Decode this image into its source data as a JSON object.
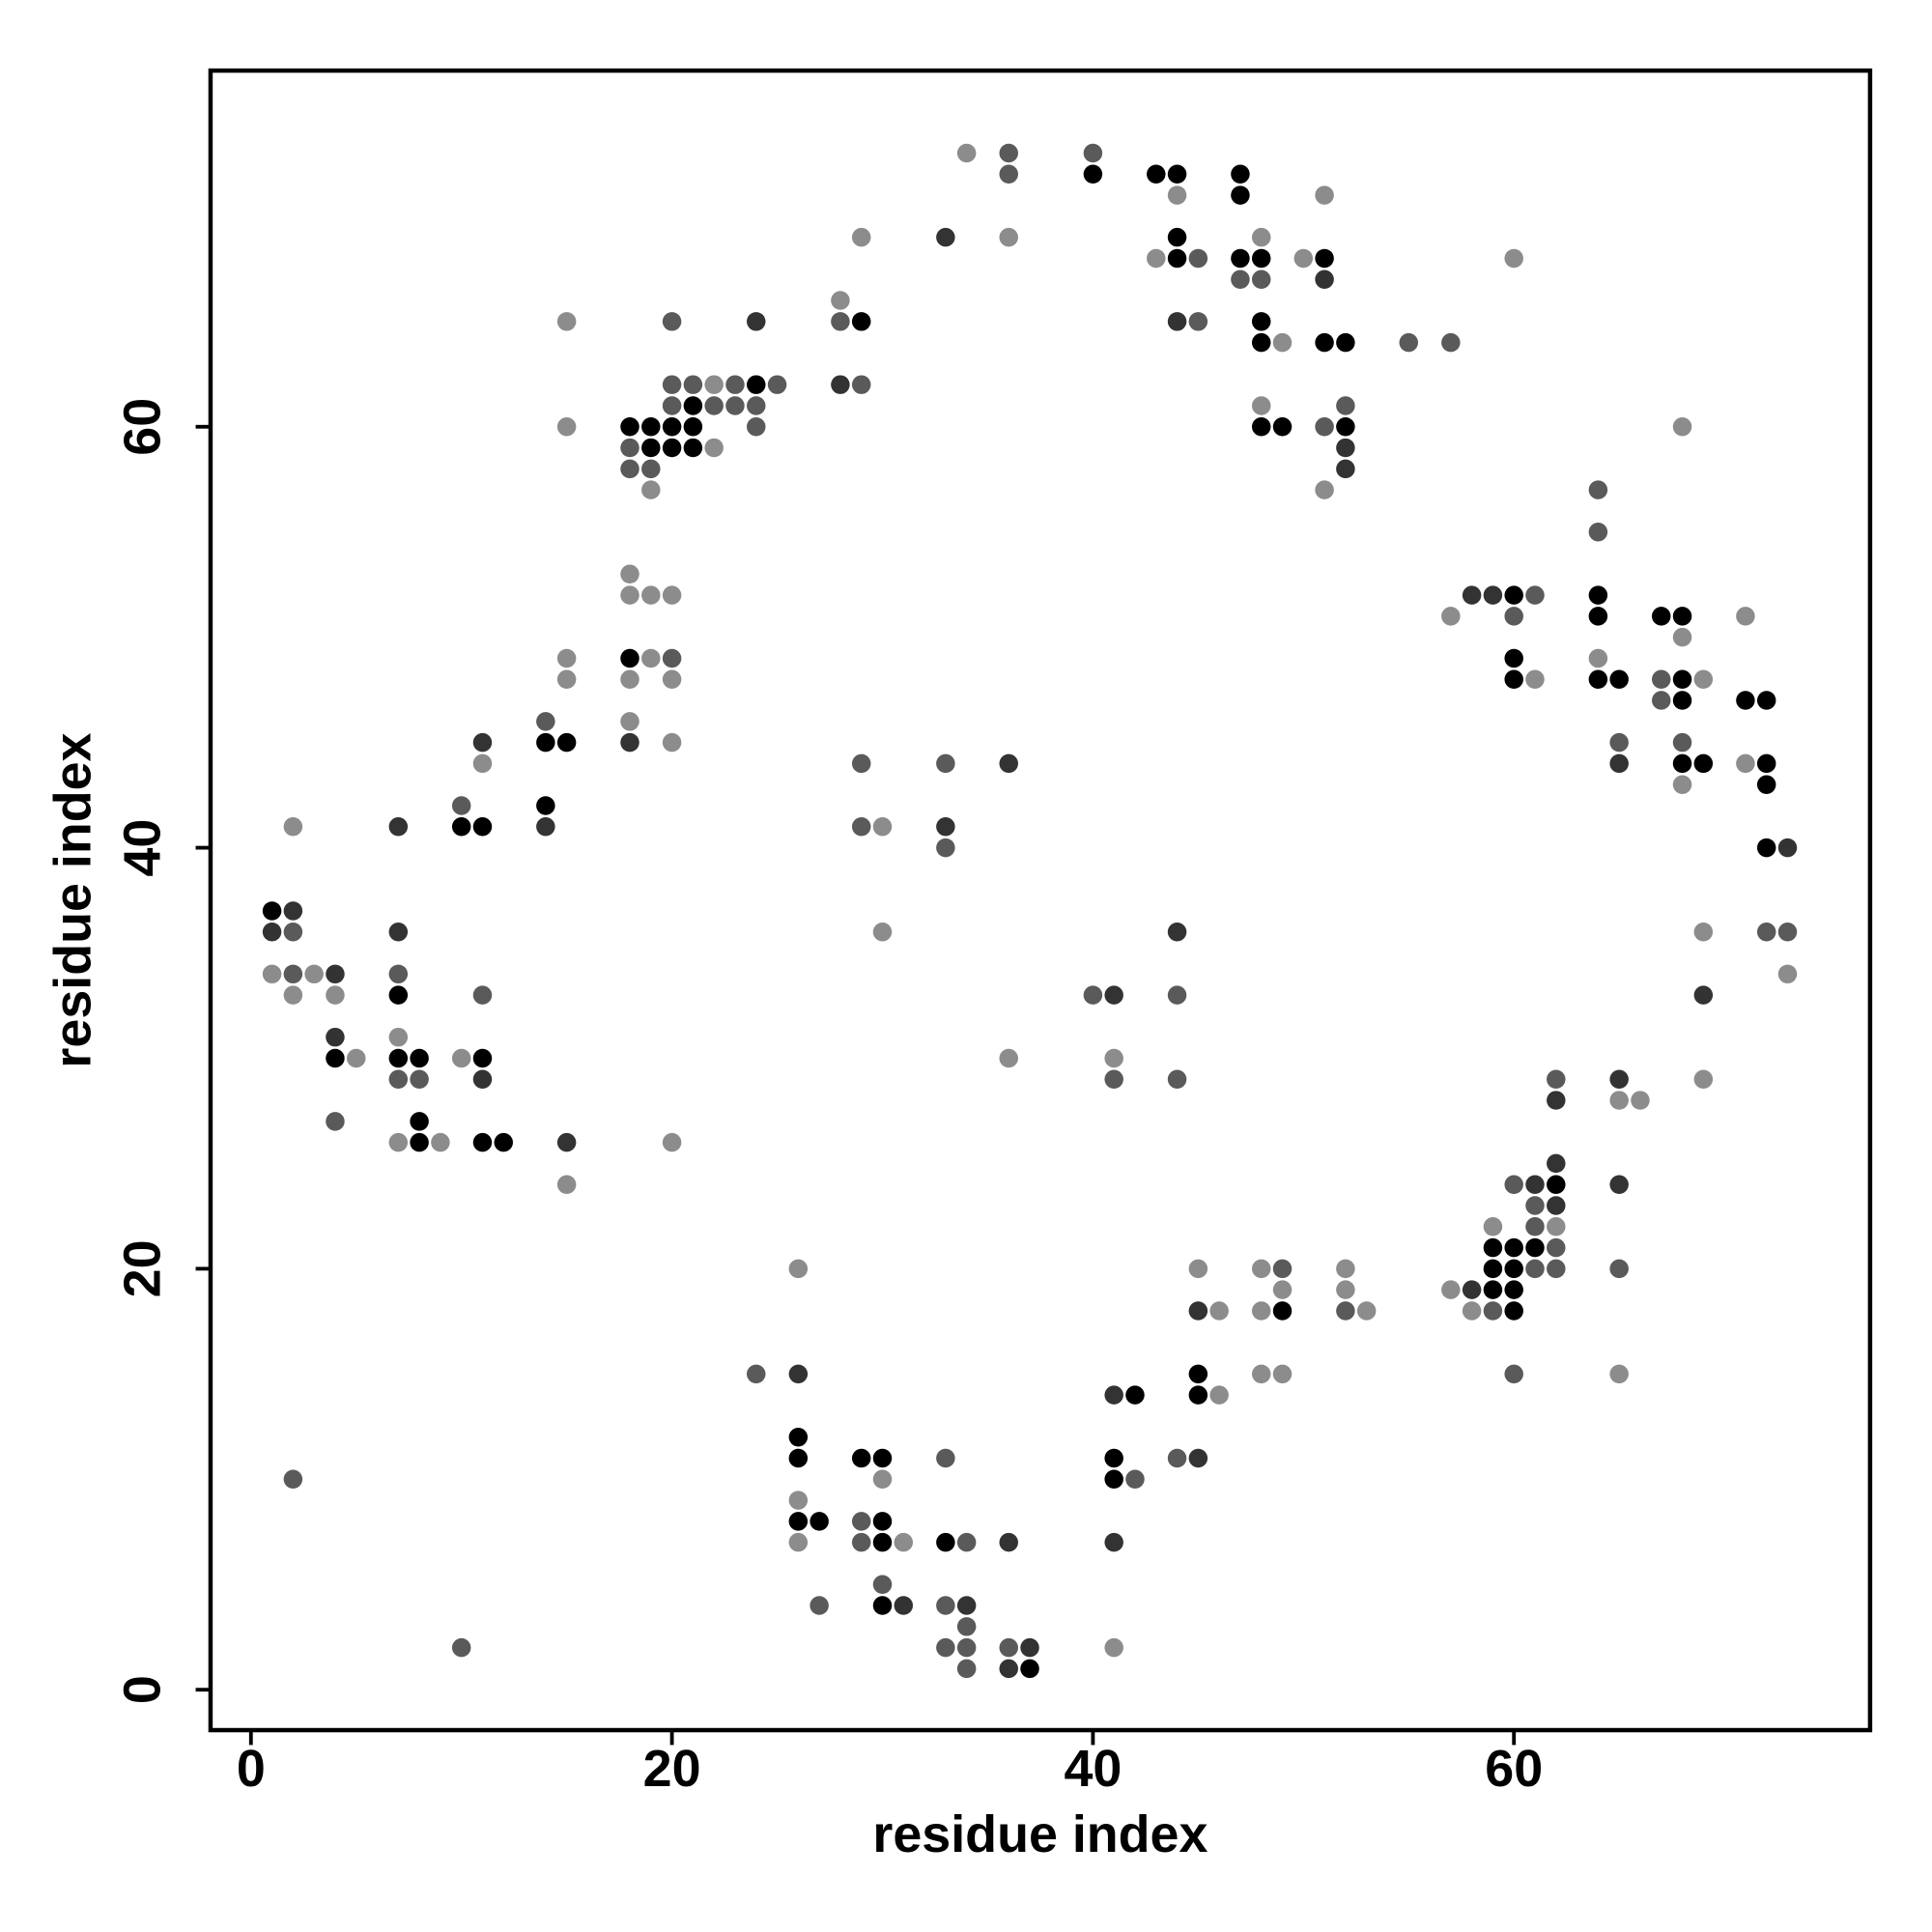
{
  "chart_data": {
    "type": "scatter",
    "x_label": "residue index",
    "y_label": "residue index",
    "xlim": [
      -1.92,
      76.92
    ],
    "ylim": [
      -1.92,
      76.92
    ],
    "xticks": [
      0,
      20,
      40,
      60
    ],
    "yticks": [
      0,
      20,
      40,
      60
    ],
    "series": [
      {
        "color": "#8c8c8c",
        "x": [
          1,
          2,
          2,
          3,
          4,
          5,
          7,
          7,
          9,
          10,
          11,
          15,
          15,
          15,
          15,
          15,
          18,
          18,
          18,
          18,
          19,
          19,
          19,
          20,
          20,
          20,
          20,
          22,
          22,
          26,
          26,
          26,
          28,
          29,
          30,
          30,
          30,
          31,
          34,
          36,
          36,
          41,
          41,
          43,
          44,
          45,
          46,
          46,
          48,
          48,
          48,
          48,
          48,
          49,
          49,
          49,
          50,
          51,
          51,
          52,
          52,
          53,
          57,
          57,
          58,
          59,
          60,
          61,
          62,
          64,
          65,
          65,
          66,
          68,
          68,
          68,
          69,
          69,
          69,
          71,
          71,
          73
        ],
        "values": [
          34,
          41,
          33,
          34,
          33,
          30,
          31,
          26,
          26,
          30,
          44,
          65,
          60,
          49,
          48,
          24,
          53,
          52,
          48,
          46,
          57,
          52,
          49,
          52,
          48,
          45,
          26,
          62,
          59,
          20,
          9,
          7,
          66,
          69,
          41,
          36,
          10,
          7,
          73,
          69,
          30,
          30,
          2,
          68,
          71,
          20,
          18,
          14,
          69,
          61,
          20,
          18,
          15,
          64,
          19,
          15,
          68,
          71,
          57,
          20,
          19,
          18,
          51,
          19,
          18,
          22,
          68,
          48,
          22,
          49,
          28,
          15,
          28,
          60,
          50,
          43,
          48,
          36,
          29,
          51,
          44,
          34
        ]
      },
      {
        "color": "#5a5a5a",
        "x": [
          2,
          2,
          2,
          4,
          7,
          7,
          8,
          10,
          10,
          11,
          14,
          18,
          18,
          19,
          20,
          20,
          20,
          20,
          21,
          22,
          23,
          23,
          24,
          24,
          24,
          25,
          27,
          28,
          29,
          29,
          29,
          29,
          29,
          30,
          33,
          33,
          33,
          33,
          33,
          34,
          34,
          34,
          34,
          36,
          36,
          36,
          40,
          40,
          41,
          42,
          44,
          44,
          44,
          45,
          45,
          47,
          48,
          49,
          51,
          52,
          52,
          55,
          57,
          59,
          60,
          60,
          60,
          61,
          61,
          61,
          61,
          62,
          62,
          62,
          64,
          64,
          65,
          65,
          67,
          67,
          68,
          72,
          73
        ],
        "values": [
          36,
          34,
          10,
          27,
          34,
          29,
          29,
          42,
          2,
          33,
          46,
          59,
          58,
          58,
          65,
          62,
          61,
          49,
          62,
          61,
          62,
          61,
          61,
          60,
          15,
          62,
          4,
          65,
          62,
          44,
          41,
          8,
          7,
          5,
          44,
          40,
          11,
          4,
          2,
          7,
          3,
          2,
          1,
          73,
          72,
          2,
          73,
          33,
          29,
          10,
          33,
          29,
          11,
          68,
          65,
          67,
          67,
          20,
          60,
          61,
          18,
          64,
          64,
          18,
          51,
          24,
          15,
          52,
          23,
          22,
          20,
          29,
          21,
          20,
          57,
          55,
          45,
          20,
          48,
          47,
          45,
          36,
          36
        ]
      },
      {
        "color": "#333333",
        "x": [
          1,
          2,
          4,
          4,
          7,
          7,
          11,
          11,
          14,
          15,
          18,
          24,
          26,
          28,
          31,
          33,
          33,
          34,
          36,
          36,
          36,
          37,
          41,
          41,
          41,
          44,
          44,
          45,
          45,
          51,
          52,
          52,
          58,
          58,
          59,
          61,
          62,
          62,
          62,
          65,
          65,
          65,
          69,
          73
        ],
        "values": [
          36,
          37,
          34,
          31,
          41,
          36,
          45,
          29,
          41,
          26,
          45,
          65,
          15,
          62,
          4,
          69,
          41,
          4,
          44,
          7,
          1,
          2,
          33,
          14,
          7,
          65,
          36,
          18,
          11,
          67,
          59,
          58,
          52,
          19,
          52,
          24,
          28,
          25,
          23,
          44,
          29,
          24,
          33,
          40
        ]
      },
      {
        "color": "#000000",
        "x": [
          1,
          4,
          7,
          7,
          8,
          8,
          8,
          10,
          11,
          11,
          11,
          12,
          14,
          14,
          15,
          18,
          18,
          19,
          19,
          20,
          20,
          21,
          21,
          21,
          24,
          26,
          26,
          26,
          27,
          29,
          29,
          30,
          30,
          30,
          30,
          33,
          37,
          40,
          41,
          41,
          42,
          43,
          44,
          44,
          44,
          45,
          45,
          47,
          47,
          47,
          48,
          48,
          48,
          48,
          49,
          49,
          51,
          51,
          52,
          52,
          59,
          59,
          59,
          60,
          60,
          60,
          60,
          60,
          60,
          60,
          61,
          62,
          64,
          64,
          64,
          65,
          67,
          68,
          68,
          68,
          68,
          69,
          71,
          72,
          72,
          72,
          72
        ],
        "values": [
          37,
          30,
          33,
          30,
          30,
          27,
          26,
          41,
          41,
          30,
          26,
          26,
          45,
          42,
          45,
          60,
          49,
          60,
          59,
          60,
          59,
          61,
          60,
          59,
          62,
          12,
          11,
          8,
          8,
          65,
          11,
          11,
          8,
          7,
          4,
          7,
          1,
          72,
          11,
          10,
          14,
          72,
          72,
          69,
          68,
          15,
          14,
          72,
          71,
          68,
          68,
          65,
          64,
          60,
          60,
          18,
          68,
          64,
          64,
          60,
          21,
          20,
          19,
          52,
          49,
          48,
          21,
          20,
          19,
          18,
          21,
          24,
          52,
          51,
          48,
          48,
          51,
          51,
          48,
          47,
          44,
          44,
          47,
          47,
          44,
          43,
          40
        ]
      }
    ]
  }
}
